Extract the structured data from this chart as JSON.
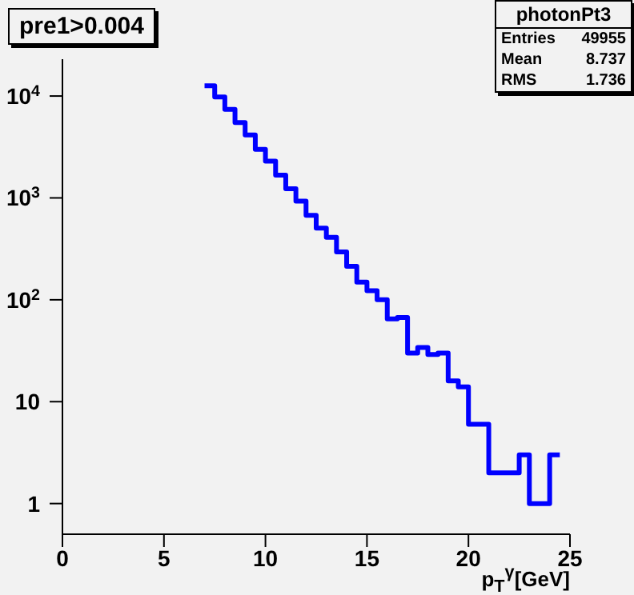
{
  "chart_data": {
    "type": "histogram",
    "title": "pre1>0.004",
    "xlabel": "p$_{T}$$^{γ}$[GeV]",
    "bins": [
      7,
      7.5,
      8,
      8.5,
      9,
      9.5,
      10,
      10.5,
      11,
      11.5,
      12,
      12.5,
      13,
      13.5,
      14,
      14.5,
      15,
      15.5,
      16,
      16.5,
      17,
      17.5,
      18,
      18.5,
      19,
      19.5,
      20,
      20.5,
      21,
      21.5,
      22,
      22.5,
      23,
      23.5,
      24,
      24.5
    ],
    "values": [
      12600,
      9800,
      7400,
      5500,
      4150,
      3000,
      2300,
      1670,
      1230,
      930,
      675,
      505,
      410,
      295,
      213,
      149,
      123,
      100,
      65,
      67,
      30,
      34,
      29,
      30,
      16,
      14,
      6,
      6,
      2,
      2,
      2,
      3,
      1,
      1,
      3
    ],
    "color": "#0000ff",
    "log": "y",
    "xlim": [
      0,
      25
    ],
    "xticks": [
      0,
      5,
      10,
      15,
      20,
      25
    ],
    "ylim": [
      0.5,
      23000
    ],
    "yticks": [
      1,
      10,
      {
        "value": 100,
        "label": "10$^{2}$"
      },
      {
        "value": 1000,
        "label": "10$^{3}$"
      },
      {
        "value": 10000,
        "label": "10$^{4}$"
      }
    ],
    "annotations": [
      "photonPt3",
      "Entries 49955",
      "Mean 8.737",
      "RMS 1.736"
    ]
  }
}
